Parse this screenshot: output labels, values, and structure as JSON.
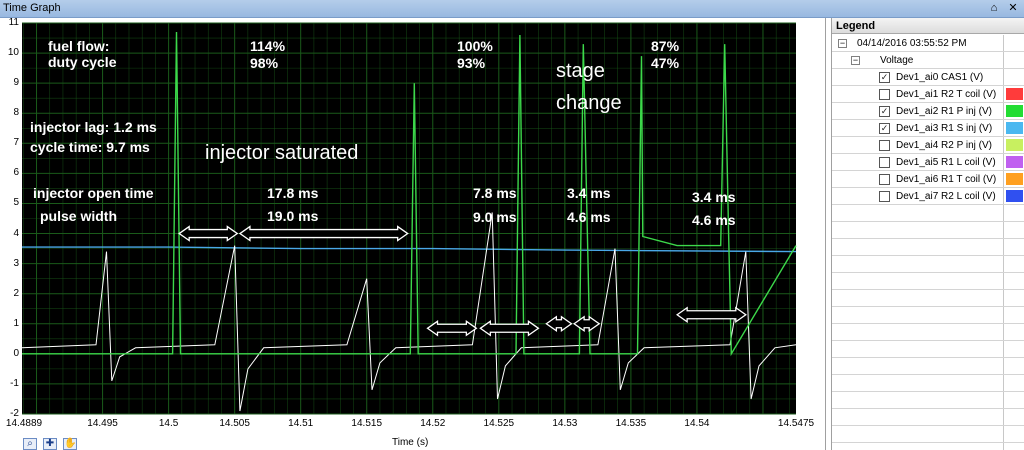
{
  "window": {
    "title": "Time Graph",
    "pin_glyph": "⌂",
    "close_glyph": "✕"
  },
  "plot": {
    "xlabel": "Time (s)",
    "xlim": [
      14.4889,
      14.5475
    ],
    "ylim": [
      -2,
      11
    ],
    "x_ticks": [
      "14.4889",
      "14.495",
      "14.5",
      "14.505",
      "14.51",
      "14.515",
      "14.52",
      "14.525",
      "14.53",
      "14.535",
      "14.54",
      "14.5475"
    ],
    "y_ticks": [
      "11",
      "10",
      "9",
      "8",
      "7",
      "6",
      "5",
      "4",
      "3",
      "2",
      "1",
      "0",
      "-1",
      "-2"
    ],
    "background": "#000000",
    "grid_color": "#1a5a1a",
    "colors": {
      "cas": "#ffffff",
      "p_inj": "#3cd84a",
      "s_inj": "#4aa8e8"
    }
  },
  "chart_data": {
    "type": "line",
    "xlabel": "Time (s)",
    "ylabel": "",
    "xlim": [
      14.4889,
      14.5475
    ],
    "ylim": [
      -2,
      11
    ],
    "series": [
      {
        "name": "Dev1_ai0 CAS1 (V)",
        "color": "#ffffff",
        "x": [
          14.4889,
          14.4945,
          14.4953,
          14.4957,
          14.4963,
          14.4975,
          14.5035,
          14.505,
          14.5054,
          14.506,
          14.5072,
          14.5135,
          14.515,
          14.5154,
          14.516,
          14.5172,
          14.523,
          14.5245,
          14.5249,
          14.5255,
          14.5267,
          14.5325,
          14.5338,
          14.5342,
          14.5348,
          14.536,
          14.5425,
          14.5437,
          14.5441,
          14.5447,
          14.5459,
          14.5475
        ],
        "y": [
          0.2,
          0.3,
          3.4,
          -0.9,
          -0.1,
          0.2,
          0.3,
          3.6,
          -1.9,
          -0.5,
          0.2,
          0.3,
          2.5,
          -1.2,
          -0.3,
          0.2,
          0.3,
          4.7,
          -1.5,
          -0.4,
          0.2,
          0.3,
          3.5,
          -1.2,
          -0.3,
          0.2,
          0.3,
          3.4,
          -1.5,
          -0.4,
          0.2,
          0.3
        ]
      },
      {
        "name": "Dev1_ai2 R1 P inj (V)",
        "color": "#3cd84a",
        "x": [
          14.4889,
          14.5003,
          14.5006,
          14.5009,
          14.5011,
          14.5183,
          14.5186,
          14.5189,
          14.5191,
          14.5263,
          14.5266,
          14.5269,
          14.5271,
          14.5311,
          14.5314,
          14.5317,
          14.5319,
          14.5355,
          14.5358,
          14.5359,
          14.5385,
          14.5418,
          14.5421,
          14.5424,
          14.5426,
          14.5475
        ],
        "y": [
          0.0,
          0.0,
          10.7,
          0.0,
          0.0,
          0.0,
          9.0,
          0.0,
          0.0,
          0.0,
          10.6,
          0.0,
          0.0,
          0.0,
          10.3,
          4.1,
          0.0,
          0.0,
          9.9,
          3.9,
          3.6,
          3.6,
          10.3,
          4.0,
          0.0,
          3.6
        ]
      },
      {
        "name": "Dev1_ai3 R1 S inj (V)",
        "color": "#4aa8e8",
        "x": [
          14.4889,
          14.5,
          14.51,
          14.52,
          14.53,
          14.5475
        ],
        "y": [
          3.55,
          3.55,
          3.5,
          3.5,
          3.45,
          3.4
        ]
      }
    ],
    "annotations": [
      "fuel flow:",
      "duty cycle",
      "114%",
      "98%",
      "100%",
      "93%",
      "87%",
      "47%",
      "stage",
      "change",
      "injector lag:  1.2 ms",
      "cycle time: 9.7 ms",
      "injector saturated",
      "injector open time",
      "pulse width",
      "17.8 ms",
      "19.0 ms",
      "7.8 ms",
      "9.0 ms",
      "3.4 ms",
      "4.6 ms",
      "3.4 ms",
      "4.6 ms"
    ]
  },
  "annotations": {
    "fuel_flow": "fuel flow:",
    "duty_cycle": "duty cycle",
    "pct_114": "114%",
    "pct_98": "98%",
    "pct_100": "100%",
    "pct_93": "93%",
    "pct_87": "87%",
    "pct_47": "47%",
    "stage": "stage",
    "change": "change",
    "injector_lag": "injector lag:  1.2 ms",
    "cycle_time": "cycle time: 9.7 ms",
    "injector_saturated": "injector saturated",
    "injector_open_time": "injector open time",
    "pulse_width": "pulse width",
    "open_1": "17.8 ms",
    "pulse_1": "19.0 ms",
    "open_2": "7.8 ms",
    "pulse_2": "9.0 ms",
    "open_3": "3.4 ms",
    "pulse_3": "4.6 ms",
    "open_4": "3.4 ms",
    "pulse_4": "4.6 ms"
  },
  "toolbar": {
    "zoom_icon": "⌕",
    "pan_icon": "✚",
    "hand_icon": "✋"
  },
  "legend": {
    "header": "Legend",
    "timestamp": "04/14/2016 03:55:52 PM",
    "group": "Voltage",
    "expander_glyph": "−",
    "check_glyph": "✓",
    "channels": [
      {
        "label": "Dev1_ai0 CAS1 (V)",
        "checked": true,
        "color": "#ffffff"
      },
      {
        "label": "Dev1_ai1 R2 T coil (V)",
        "checked": false,
        "color": "#ff3b3b"
      },
      {
        "label": "Dev1_ai2 R1 P inj (V)",
        "checked": true,
        "color": "#22dd33"
      },
      {
        "label": "Dev1_ai3 R1 S inj (V)",
        "checked": true,
        "color": "#4ab8f0"
      },
      {
        "label": "Dev1_ai4 R2 P inj (V)",
        "checked": false,
        "color": "#c8f060"
      },
      {
        "label": "Dev1_ai5  R1 L coil (V)",
        "checked": false,
        "color": "#c060f0"
      },
      {
        "label": "Dev1_ai6 R1 T coil (V)",
        "checked": false,
        "color": "#ffa020"
      },
      {
        "label": "Dev1_ai7 R2 L coil (V)",
        "checked": false,
        "color": "#3050f0"
      }
    ]
  }
}
